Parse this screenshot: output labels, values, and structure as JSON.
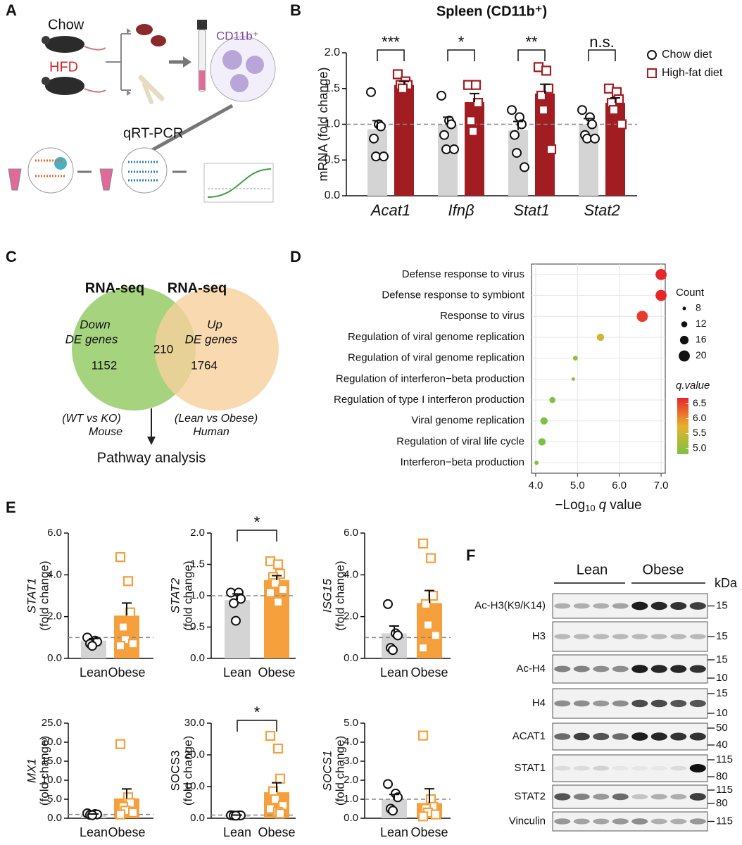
{
  "panels": [
    "A",
    "B",
    "C",
    "D",
    "E",
    "F"
  ],
  "schematic": {
    "diets": [
      "Chow",
      "HFD"
    ],
    "cells": "CD11b⁺",
    "method": "qRT-PCR"
  },
  "venn": {
    "sets": [
      {
        "title": "RNA-seq",
        "name": [
          "Down",
          "DE genes"
        ],
        "count": 1152,
        "source": [
          "(WT vs KO)",
          "Mouse"
        ]
      },
      {
        "title": "RNA-seq",
        "name": [
          "Up",
          "DE genes"
        ],
        "count": 1764,
        "source": [
          "(Lean vs Obese)",
          "Human"
        ]
      }
    ],
    "overlap": 210,
    "result": "Pathway analysis"
  },
  "blot": {
    "groups": [
      "Lean",
      "Obese"
    ],
    "unit": "kDa",
    "rows": [
      {
        "label": "Ac-H3(K9/K14)",
        "markers": [
          "15"
        ]
      },
      {
        "label": "H3",
        "markers": [
          "15"
        ]
      },
      {
        "label": "Ac-H4",
        "markers": [
          "15",
          "10"
        ]
      },
      {
        "label": "H4",
        "markers": [
          "15",
          "10"
        ]
      },
      {
        "label": "ACAT1",
        "markers": [
          "50",
          "40"
        ]
      },
      {
        "label": "STAT1",
        "markers": [
          "115",
          "80"
        ]
      },
      {
        "label": "STAT2",
        "markers": [
          "115",
          "80"
        ]
      },
      {
        "label": "Vinculin",
        "markers": [
          "115"
        ]
      }
    ]
  },
  "chart_data": [
    {
      "type": "bar",
      "title": "Spleen (CD11b⁺)",
      "ylabel": [
        "mRNA (fold change)"
      ],
      "categories": [
        "Acat1",
        "Ifnβ",
        "Stat1",
        "Stat2"
      ],
      "series": [
        {
          "name": "Chow diet",
          "color": "#d4d4d4",
          "marker": "circle",
          "values": [
            0.93,
            1.0,
            0.92,
            1.0
          ],
          "errors": [
            0.12,
            0.1,
            0.12,
            0.08
          ],
          "points": [
            [
              1.45,
              1.0,
              0.97,
              0.8,
              0.55,
              0.55
            ],
            [
              1.4,
              1.05,
              1.0,
              0.85,
              0.65,
              0.65
            ],
            [
              1.2,
              1.1,
              1.0,
              0.85,
              0.6,
              0.4
            ],
            [
              1.2,
              1.1,
              1.0,
              0.85,
              0.8,
              0.8
            ]
          ]
        },
        {
          "name": "High-fat diet",
          "color": "#a11d21",
          "marker": "square",
          "values": [
            1.55,
            1.31,
            1.43,
            1.3
          ],
          "errors": [
            0.05,
            0.12,
            0.13,
            0.07
          ],
          "points": [
            [
              1.7,
              1.6,
              1.55,
              1.55,
              1.5
            ],
            [
              1.55,
              1.55,
              1.3,
              1.05,
              0.9
            ],
            [
              1.8,
              1.75,
              1.5,
              1.4,
              1.2,
              0.65
            ],
            [
              1.5,
              1.45,
              1.35,
              1.3,
              1.2,
              1.0
            ]
          ]
        }
      ],
      "significance": [
        "***",
        "*",
        "**",
        "n.s."
      ],
      "reference_line": 1,
      "legend": "right",
      "ylim": [
        0,
        2
      ],
      "yticks": [
        {
          "value": 0,
          "label": "0.0"
        },
        {
          "value": 0.5,
          "label": "0.5"
        },
        {
          "value": 1,
          "label": "1.0"
        },
        {
          "value": 1.5,
          "label": "1.5"
        },
        {
          "value": 2,
          "label": "2.0"
        }
      ]
    },
    {
      "type": "dot",
      "categories": [
        "Defense response to virus",
        "Defense response to symbiont",
        "Response to virus",
        "Regulation of viral genome replication",
        "Regulation of viral genome replication",
        "Regulation of interferon−beta production",
        "Regulation of type I interferon production",
        "Viral genome replication",
        "Regulation of viral life cycle",
        "Interferon−beta production"
      ],
      "values": [
        7.0,
        7.0,
        6.55,
        5.55,
        4.95,
        4.9,
        4.4,
        4.2,
        4.15,
        4.02
      ],
      "sizes": [
        20,
        20,
        20,
        14,
        10,
        8,
        12,
        14,
        14,
        9
      ],
      "xlabel": [
        "−Log",
        "10",
        "q",
        "value"
      ],
      "xlim": [
        3.9,
        7.1
      ],
      "xticks": [
        {
          "value": 4,
          "label": "4.0"
        },
        {
          "value": 5,
          "label": "5.0"
        },
        {
          "value": 6,
          "label": "6.0"
        },
        {
          "value": 7,
          "label": "7.0"
        }
      ],
      "size_legend": {
        "title": "Count",
        "values": [
          8,
          12,
          16,
          20
        ]
      },
      "color_scale": {
        "title": "q.value",
        "lim": [
          4.8,
          6.7
        ],
        "colors": [
          "#7dc242",
          "#e8b02a",
          "#e8262a"
        ],
        "ticks": [
          {
            "value": 5,
            "label": "5.0"
          },
          {
            "value": 5.5,
            "label": "5.5"
          },
          {
            "value": 6,
            "label": "6.0"
          },
          {
            "value": 6.5,
            "label": "6.5"
          }
        ]
      }
    },
    {
      "type": "bar",
      "ylabel": [
        "STAT1",
        "(fold change)"
      ],
      "ylabel_style": "italic",
      "categories": [
        "Lean",
        "Obese"
      ],
      "colors": [
        "#d4d4d4",
        "#f5a03c"
      ],
      "markers": [
        "circle",
        "square"
      ],
      "values": [
        0.85,
        2.05
      ],
      "errors": [
        0.1,
        0.6
      ],
      "points": [
        [
          1.0,
          0.85,
          0.8,
          0.7,
          0.6
        ],
        [
          4.85,
          3.7,
          2.2,
          1.5,
          0.9,
          0.7,
          0.6
        ]
      ],
      "reference_line": 1,
      "ylim": [
        0,
        6
      ],
      "yticks": [
        {
          "value": 0,
          "label": "0.0"
        },
        {
          "value": 2,
          "label": "2.0"
        },
        {
          "value": 4,
          "label": "4.0"
        },
        {
          "value": 6,
          "label": "6.0"
        }
      ]
    },
    {
      "type": "bar",
      "ylabel": [
        "STAT2",
        "(fold change)"
      ],
      "ylabel_style": "italic",
      "categories": [
        "Lean",
        "Obese"
      ],
      "colors": [
        "#d4d4d4",
        "#f5a03c"
      ],
      "markers": [
        "circle",
        "square"
      ],
      "values": [
        0.93,
        1.25
      ],
      "errors": [
        0.1,
        0.07
      ],
      "points": [
        [
          1.05,
          1.05,
          0.95,
          0.88,
          0.6
        ],
        [
          1.55,
          1.5,
          1.35,
          1.3,
          1.2,
          1.1,
          1.05,
          0.9
        ]
      ],
      "reference_line": 1,
      "significance": [
        "*"
      ],
      "ylim": [
        0,
        2
      ],
      "yticks": [
        {
          "value": 0,
          "label": "0.0"
        },
        {
          "value": 0.5,
          "label": "0.5"
        },
        {
          "value": 1,
          "label": "1.0"
        },
        {
          "value": 1.5,
          "label": "1.5"
        },
        {
          "value": 2,
          "label": "2.0"
        }
      ]
    },
    {
      "type": "bar",
      "ylabel": [
        "ISG15",
        "(fold change)"
      ],
      "ylabel_style": "italic",
      "categories": [
        "Lean",
        "Obese"
      ],
      "colors": [
        "#d4d4d4",
        "#f5a03c"
      ],
      "markers": [
        "circle",
        "square"
      ],
      "values": [
        1.2,
        2.65
      ],
      "errors": [
        0.35,
        0.6
      ],
      "points": [
        [
          2.6,
          1.2,
          1.1,
          0.5,
          0.4
        ],
        [
          5.5,
          4.8,
          3.0,
          2.6,
          1.6,
          1.1,
          0.5
        ]
      ],
      "reference_line": 1,
      "ylim": [
        0,
        6
      ],
      "yticks": [
        {
          "value": 0,
          "label": "0.0"
        },
        {
          "value": 2,
          "label": "2.0"
        },
        {
          "value": 4,
          "label": "4.0"
        },
        {
          "value": 6,
          "label": "6.0"
        }
      ]
    },
    {
      "type": "bar",
      "ylabel": [
        "MX1",
        "(fold change)"
      ],
      "ylabel_style": "italic",
      "categories": [
        "Lean",
        "Obese"
      ],
      "colors": [
        "#d4d4d4",
        "#f5a03c"
      ],
      "markers": [
        "circle",
        "square"
      ],
      "values": [
        1.0,
        5.2
      ],
      "errors": [
        0.1,
        2.5
      ],
      "points": [
        [
          1.3,
          1.1,
          1.0,
          0.9,
          0.8
        ],
        [
          19.5,
          5.5,
          4.0,
          3.0,
          2.0,
          1.5,
          1.0
        ]
      ],
      "reference_line": 1,
      "ylim": [
        0,
        25
      ],
      "yticks": [
        {
          "value": 0,
          "label": "0.0"
        },
        {
          "value": 5,
          "label": "5.0"
        },
        {
          "value": 10,
          "label": "10.0"
        },
        {
          "value": 15,
          "label": "15.0"
        },
        {
          "value": 20,
          "label": "20.0"
        },
        {
          "value": 25,
          "label": "25.0"
        }
      ]
    },
    {
      "type": "bar",
      "ylabel": [
        "SOCS3",
        "(fold change)"
      ],
      "ylabel_style": "normal",
      "categories": [
        "Lean",
        "Obese"
      ],
      "colors": [
        "#d4d4d4",
        "#f5a03c"
      ],
      "markers": [
        "circle",
        "square"
      ],
      "values": [
        0.9,
        8.2
      ],
      "errors": [
        0.1,
        3.0
      ],
      "points": [
        [
          0.95,
          0.9,
          0.9,
          0.85,
          0.8
        ],
        [
          26,
          22,
          12.5,
          8.5,
          6,
          4,
          3,
          2,
          1.5
        ]
      ],
      "reference_line": 1,
      "significance": [
        "*"
      ],
      "ylim": [
        0,
        30
      ],
      "yticks": [
        {
          "value": 0,
          "label": "0.0"
        },
        {
          "value": 10,
          "label": "10.0"
        },
        {
          "value": 20,
          "label": "20.0"
        },
        {
          "value": 30,
          "label": "30.0"
        }
      ]
    },
    {
      "type": "bar",
      "ylabel": [
        "SOCS1",
        "(fold change)"
      ],
      "ylabel_style": "italic",
      "categories": [
        "Lean",
        "Obese"
      ],
      "colors": [
        "#d4d4d4",
        "#f5a03c"
      ],
      "markers": [
        "circle",
        "square"
      ],
      "values": [
        1.0,
        0.8
      ],
      "errors": [
        0.25,
        0.75
      ],
      "points": [
        [
          1.8,
          1.3,
          1.1,
          0.5,
          0.4
        ],
        [
          4.35,
          1.0,
          0.6,
          0.5,
          0.3,
          0.2,
          0.1
        ]
      ],
      "reference_line": 1,
      "ylim": [
        0,
        5
      ],
      "yticks": [
        {
          "value": 0,
          "label": "0.0"
        },
        {
          "value": 1,
          "label": "1.0"
        },
        {
          "value": 2,
          "label": "2.0"
        },
        {
          "value": 3,
          "label": "3.0"
        },
        {
          "value": 4,
          "label": "4.0"
        },
        {
          "value": 5,
          "label": "5.0"
        }
      ]
    }
  ]
}
